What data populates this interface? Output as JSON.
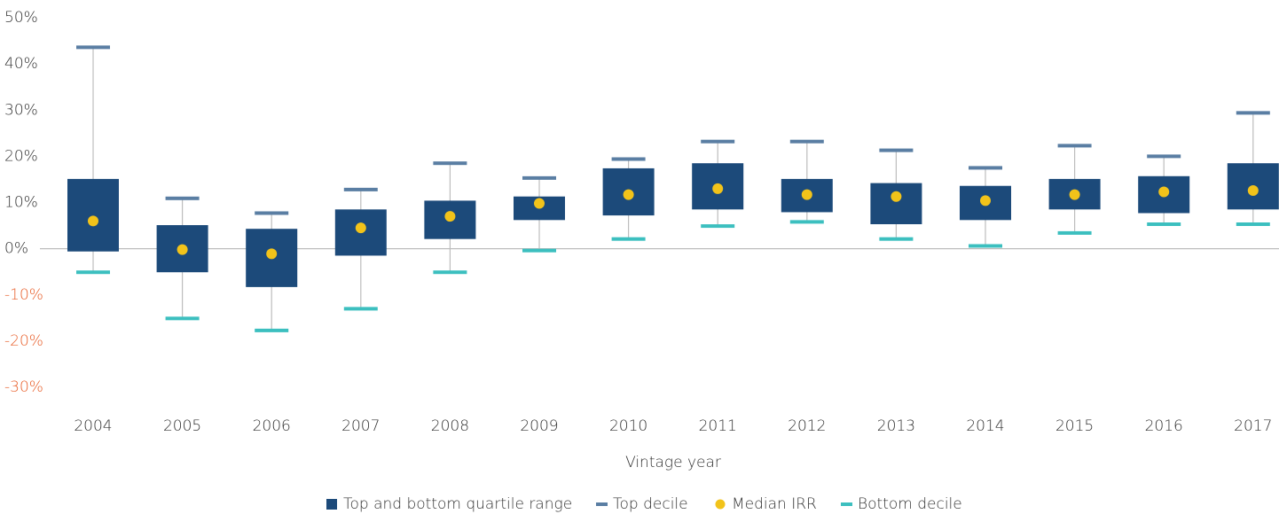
{
  "chart_data": {
    "type": "box",
    "x_label": "Vintage year",
    "categories": [
      "2004",
      "2005",
      "2006",
      "2007",
      "2008",
      "2009",
      "2010",
      "2011",
      "2012",
      "2013",
      "2014",
      "2015",
      "2016",
      "2017"
    ],
    "series": [
      {
        "name": "Top and bottom quartile range",
        "color": "#1c4a7a",
        "low": [
          -0.6,
          -5.1,
          -8.3,
          -1.5,
          2.1,
          6.2,
          7.2,
          8.5,
          7.9,
          5.3,
          6.2,
          8.5,
          7.7,
          8.5
        ],
        "high": [
          15.1,
          5.1,
          4.3,
          8.5,
          10.4,
          11.3,
          17.4,
          18.5,
          15.1,
          14.2,
          13.6,
          15.1,
          15.7,
          18.5
        ]
      },
      {
        "name": "Top decile",
        "color": "#5a7ea3",
        "values": [
          43.6,
          10.9,
          7.7,
          12.8,
          18.5,
          15.3,
          19.4,
          23.2,
          23.2,
          21.3,
          17.5,
          22.3,
          20.0,
          29.4
        ]
      },
      {
        "name": "Median IRR",
        "color": "#f2c31a",
        "values": [
          6.0,
          -0.2,
          -1.1,
          4.5,
          7.0,
          9.8,
          11.7,
          13.0,
          11.7,
          11.3,
          10.4,
          11.7,
          12.3,
          12.6
        ]
      },
      {
        "name": "Bottom decile",
        "color": "#3cbfbf",
        "values": [
          -5.1,
          -15.1,
          -17.7,
          -13.0,
          -5.1,
          -0.4,
          2.1,
          4.9,
          5.8,
          2.1,
          0.6,
          3.4,
          5.3,
          5.3
        ]
      }
    ],
    "ylim": [
      -30,
      50
    ],
    "yticks": [
      {
        "value": 50,
        "label": "50%"
      },
      {
        "value": 40,
        "label": "40%"
      },
      {
        "value": 30,
        "label": "30%"
      },
      {
        "value": 20,
        "label": "20%"
      },
      {
        "value": 10,
        "label": "10%"
      },
      {
        "value": 0,
        "label": "0%"
      },
      {
        "value": -10,
        "label": "-10%"
      },
      {
        "value": -20,
        "label": "-20%"
      },
      {
        "value": -30,
        "label": "-30%"
      }
    ],
    "negative_tick_color": "#e8602c",
    "legend": "bottom"
  }
}
